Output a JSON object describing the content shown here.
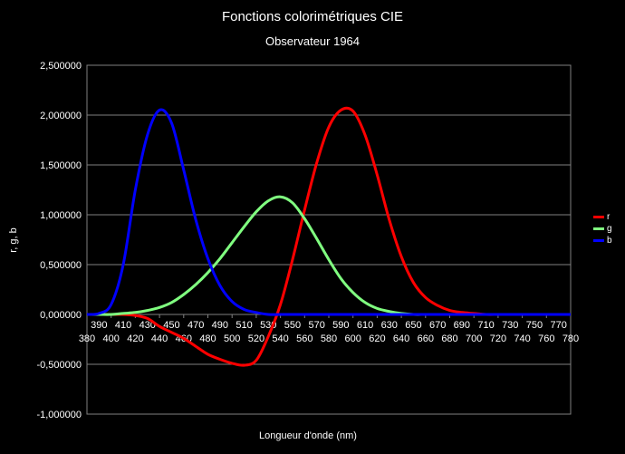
{
  "title": "Fonctions colorimétriques CIE",
  "subtitle": "Observateur 1964",
  "chart_data": {
    "type": "line",
    "xlabel": "Longueur d'onde (nm)",
    "ylabel": "r, g, b",
    "xlim": [
      380,
      780
    ],
    "ylim": [
      -1.0,
      2.5
    ],
    "y_ticks": [
      "2,500000",
      "2,000000",
      "1,500000",
      "1,000000",
      "0,500000",
      "0,000000",
      "-0,500000",
      "-1,000000"
    ],
    "x_ticks_upper": [
      "390",
      "410",
      "430",
      "450",
      "470",
      "490",
      "510",
      "530",
      "550",
      "570",
      "590",
      "610",
      "630",
      "650",
      "670",
      "690",
      "710",
      "730",
      "750",
      "770"
    ],
    "x_ticks_lower": [
      "380",
      "400",
      "420",
      "440",
      "460",
      "480",
      "500",
      "520",
      "540",
      "560",
      "580",
      "600",
      "620",
      "640",
      "660",
      "680",
      "700",
      "720",
      "740",
      "760",
      "780"
    ],
    "legend_position": "right",
    "grid": true,
    "x": [
      380,
      390,
      400,
      410,
      420,
      430,
      440,
      450,
      460,
      470,
      480,
      490,
      500,
      510,
      520,
      530,
      540,
      550,
      560,
      570,
      580,
      590,
      600,
      610,
      620,
      630,
      640,
      650,
      660,
      670,
      680,
      690,
      700,
      710,
      720,
      730,
      740,
      750,
      760,
      770,
      780
    ],
    "series": [
      {
        "name": "r",
        "color": "#ff0000",
        "values": [
          0.0,
          0.0,
          0.0,
          0.0,
          -0.01,
          -0.04,
          -0.12,
          -0.18,
          -0.24,
          -0.32,
          -0.4,
          -0.45,
          -0.49,
          -0.51,
          -0.46,
          -0.22,
          0.1,
          0.55,
          1.05,
          1.52,
          1.88,
          2.05,
          2.04,
          1.8,
          1.4,
          0.95,
          0.58,
          0.32,
          0.17,
          0.09,
          0.04,
          0.02,
          0.01,
          0.0,
          0.0,
          0.0,
          0.0,
          0.0,
          0.0,
          0.0,
          0.0
        ]
      },
      {
        "name": "g",
        "color": "#80ff80",
        "values": [
          0.0,
          0.0,
          0.0,
          0.01,
          0.02,
          0.04,
          0.07,
          0.12,
          0.2,
          0.3,
          0.42,
          0.56,
          0.72,
          0.88,
          1.03,
          1.14,
          1.18,
          1.12,
          0.96,
          0.76,
          0.55,
          0.36,
          0.22,
          0.12,
          0.06,
          0.03,
          0.01,
          0.0,
          0.0,
          0.0,
          0.0,
          0.0,
          0.0,
          0.0,
          0.0,
          0.0,
          0.0,
          0.0,
          0.0,
          0.0,
          0.0
        ]
      },
      {
        "name": "b",
        "color": "#0000ff",
        "values": [
          0.0,
          0.01,
          0.1,
          0.5,
          1.25,
          1.8,
          2.05,
          1.92,
          1.45,
          0.95,
          0.56,
          0.29,
          0.13,
          0.05,
          0.02,
          0.0,
          0.0,
          0.0,
          0.0,
          0.0,
          0.0,
          0.0,
          0.0,
          0.0,
          0.0,
          0.0,
          0.0,
          0.0,
          0.0,
          0.0,
          0.0,
          0.0,
          0.0,
          0.0,
          0.0,
          0.0,
          0.0,
          0.0,
          0.0,
          0.0,
          0.0
        ]
      }
    ]
  }
}
